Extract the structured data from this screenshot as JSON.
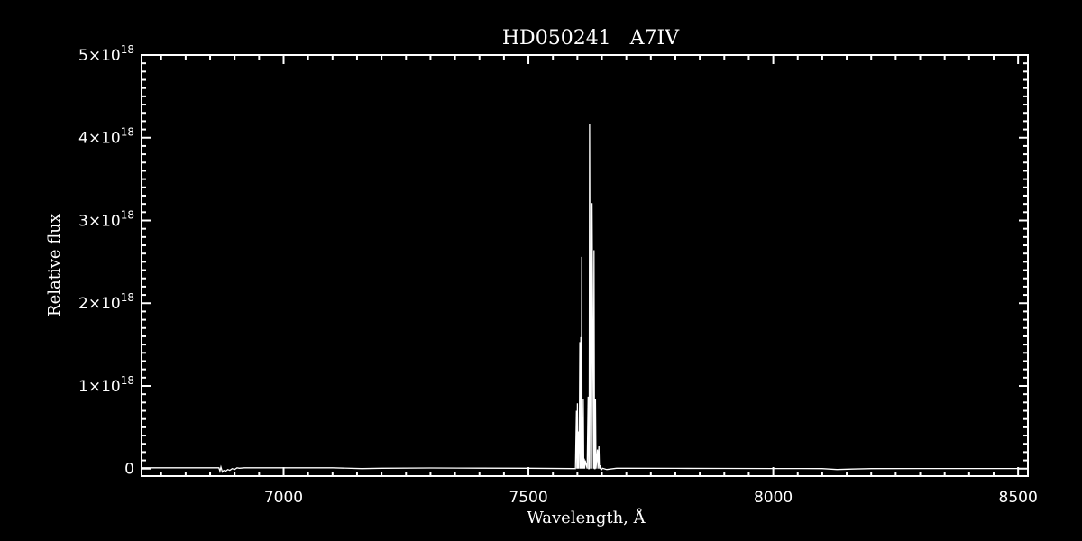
{
  "chart_data": {
    "type": "line",
    "title": "HD050241   A7IV",
    "xlabel": "Wavelength, Å",
    "ylabel": "Relative flux",
    "xlim": [
      6710,
      8520
    ],
    "ylim": [
      -9e+16,
      5e+18
    ],
    "x_major_ticks": [
      7000,
      7500,
      8000,
      8500
    ],
    "x_tick_labels": [
      "7000",
      "7500",
      "8000",
      "8500"
    ],
    "x_minor_step": 50,
    "y_major_ticks": [
      0,
      1e+18,
      2e+18,
      3e+18,
      4e+18,
      5e+18
    ],
    "y_tick_labels": [
      {
        "mant": "0",
        "exp": ""
      },
      {
        "mant": "1×10",
        "exp": "18"
      },
      {
        "mant": "2×10",
        "exp": "18"
      },
      {
        "mant": "3×10",
        "exp": "18"
      },
      {
        "mant": "4×10",
        "exp": "18"
      },
      {
        "mant": "5×10",
        "exp": "18"
      }
    ],
    "y_minor_step": 1e+17,
    "grid": false,
    "colors": {
      "background": "#000000",
      "line": "#ffffff",
      "axes": "#ffffff"
    },
    "series": [
      {
        "x": [
          6710,
          6868,
          6870,
          6872,
          6875,
          6878,
          6882,
          6886,
          6890,
          6895,
          6900,
          6905,
          6910,
          6920,
          7000,
          7100,
          7160,
          7200,
          7300,
          7400,
          7500,
          7596,
          7598,
          7599,
          7600,
          7601,
          7602,
          7603,
          7604,
          7605,
          7606,
          7607,
          7608,
          7609,
          7609.5,
          7610,
          7611,
          7612,
          7613,
          7614,
          7615,
          7616,
          7620,
          7622,
          7623,
          7624,
          7625,
          7627,
          7628,
          7629,
          7630,
          7632,
          7633,
          7634,
          7635,
          7636,
          7637,
          7638,
          7641,
          7642,
          7644,
          7645,
          7646,
          7647,
          7650,
          7651,
          7660,
          7680,
          7700,
          7800,
          7900,
          8000,
          8100,
          8130,
          8160,
          8200,
          8300,
          8400,
          8520
        ],
        "y": [
          1e+16,
          1e+16,
          -3e+16,
          2e+16,
          -4e+16,
          -2e+16,
          -3e+16,
          -1e+16,
          -2e+16,
          0.0,
          -1e+16,
          1e+16,
          5000000000000000.0,
          1e+16,
          1e+16,
          1e+16,
          0.0,
          5000000000000000.0,
          8000000000000000.0,
          6000000000000000.0,
          5000000000000000.0,
          0.0,
          7e+17,
          0.0,
          7.9e+17,
          0.0,
          4.5e+17,
          0.0,
          4.2e+17,
          1.53e+18,
          0.0,
          1.59e+18,
          0.0,
          2.56e+18,
          0.0,
          6.2e+17,
          0.0,
          8.4e+17,
          0.0,
          1.2e+17,
          0.0,
          1e+17,
          0.0,
          8.7e+17,
          0.0,
          0.0,
          4.17e+18,
          0.0,
          1.72e+18,
          0.0,
          3.21e+18,
          1.09e+18,
          0.0,
          2.64e+18,
          0.0,
          0.0,
          8.4e+17,
          0.0,
          2.3e+17,
          0.0,
          2.7e+17,
          0.0,
          4e+16,
          0.0,
          -1e+16,
          5000000000000000.0,
          -1e+16,
          5000000000000000.0,
          5000000000000000.0,
          4000000000000000.0,
          3000000000000000.0,
          2000000000000000.0,
          0.0,
          -1e+16,
          -5000000000000000.0,
          0.0,
          2000000000000000.0,
          2000000000000000.0,
          2000000000000000.0
        ]
      }
    ]
  }
}
